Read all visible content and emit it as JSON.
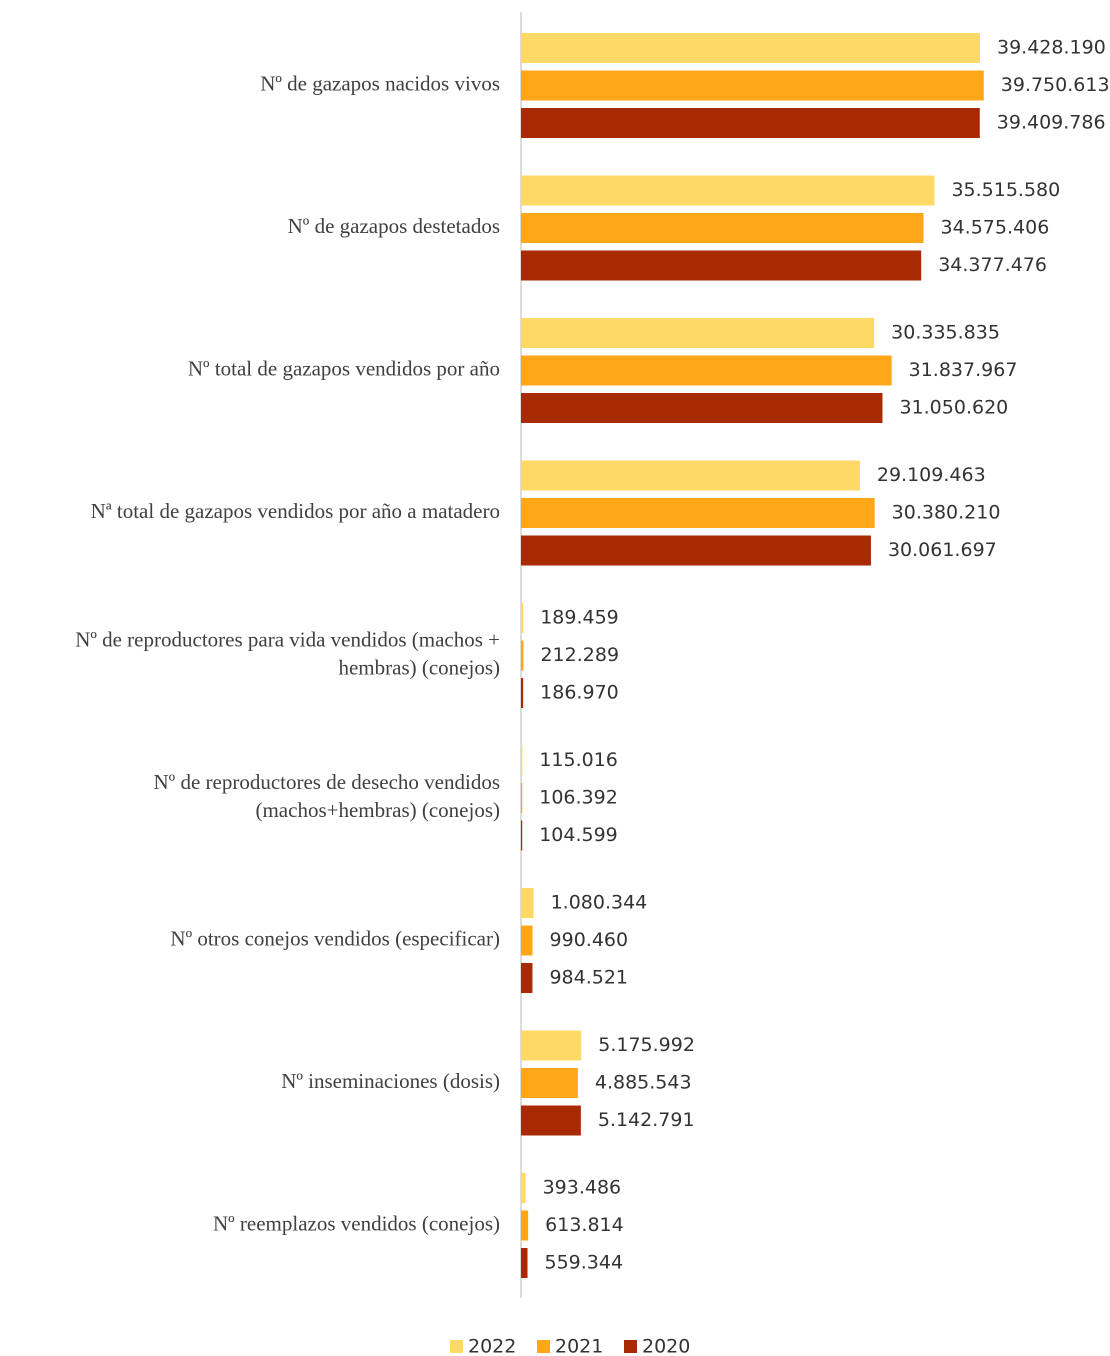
{
  "chart_data": {
    "type": "bar",
    "orientation": "horizontal",
    "title": "",
    "xlabel": "",
    "ylabel": "",
    "grid": false,
    "legend": "bottom",
    "xlim": [
      0,
      40000000
    ],
    "categories": [
      [
        "Nº de gazapos nacidos vivos"
      ],
      [
        "Nº de gazapos destetados"
      ],
      [
        "Nº total de gazapos vendidos por año"
      ],
      [
        "Nª total de gazapos vendidos por año a matadero"
      ],
      [
        "Nº de reproductores para vida vendidos (machos +",
        "hembras) (conejos)"
      ],
      [
        "Nº de reproductores de desecho vendidos",
        "(machos+hembras) (conejos)"
      ],
      [
        "Nº otros conejos vendidos (especificar)"
      ],
      [
        "Nº inseminaciones (dosis)"
      ],
      [
        "Nº reemplazos vendidos (conejos)"
      ]
    ],
    "series": [
      {
        "name": "2022",
        "color": "#FFD966",
        "values": [
          39428190,
          35515580,
          30335835,
          29109463,
          189459,
          115016,
          1080344,
          5175992,
          393486
        ],
        "labels": [
          "39.428.190",
          "35.515.580",
          "30.335.835",
          "29.109.463",
          "189.459",
          "115.016",
          "1.080.344",
          "5.175.992",
          "393.486"
        ]
      },
      {
        "name": "2021",
        "color": "#FFA719",
        "values": [
          39750613,
          34575406,
          31837967,
          30380210,
          212289,
          106392,
          990460,
          4885543,
          613814
        ],
        "labels": [
          "39.750.613",
          "34.575.406",
          "31.837.967",
          "30.380.210",
          "212.289",
          "106.392",
          "990.460",
          "4.885.543",
          "613.814"
        ]
      },
      {
        "name": "2020",
        "color": "#A82A04",
        "values": [
          39409786,
          34377476,
          31050620,
          30061697,
          186970,
          104599,
          984521,
          5142791,
          559344
        ],
        "labels": [
          "39.409.786",
          "34.377.476",
          "31.050.620",
          "30.061.697",
          "186.970",
          "104.599",
          "984.521",
          "5.142.791",
          "559.344"
        ]
      }
    ]
  }
}
